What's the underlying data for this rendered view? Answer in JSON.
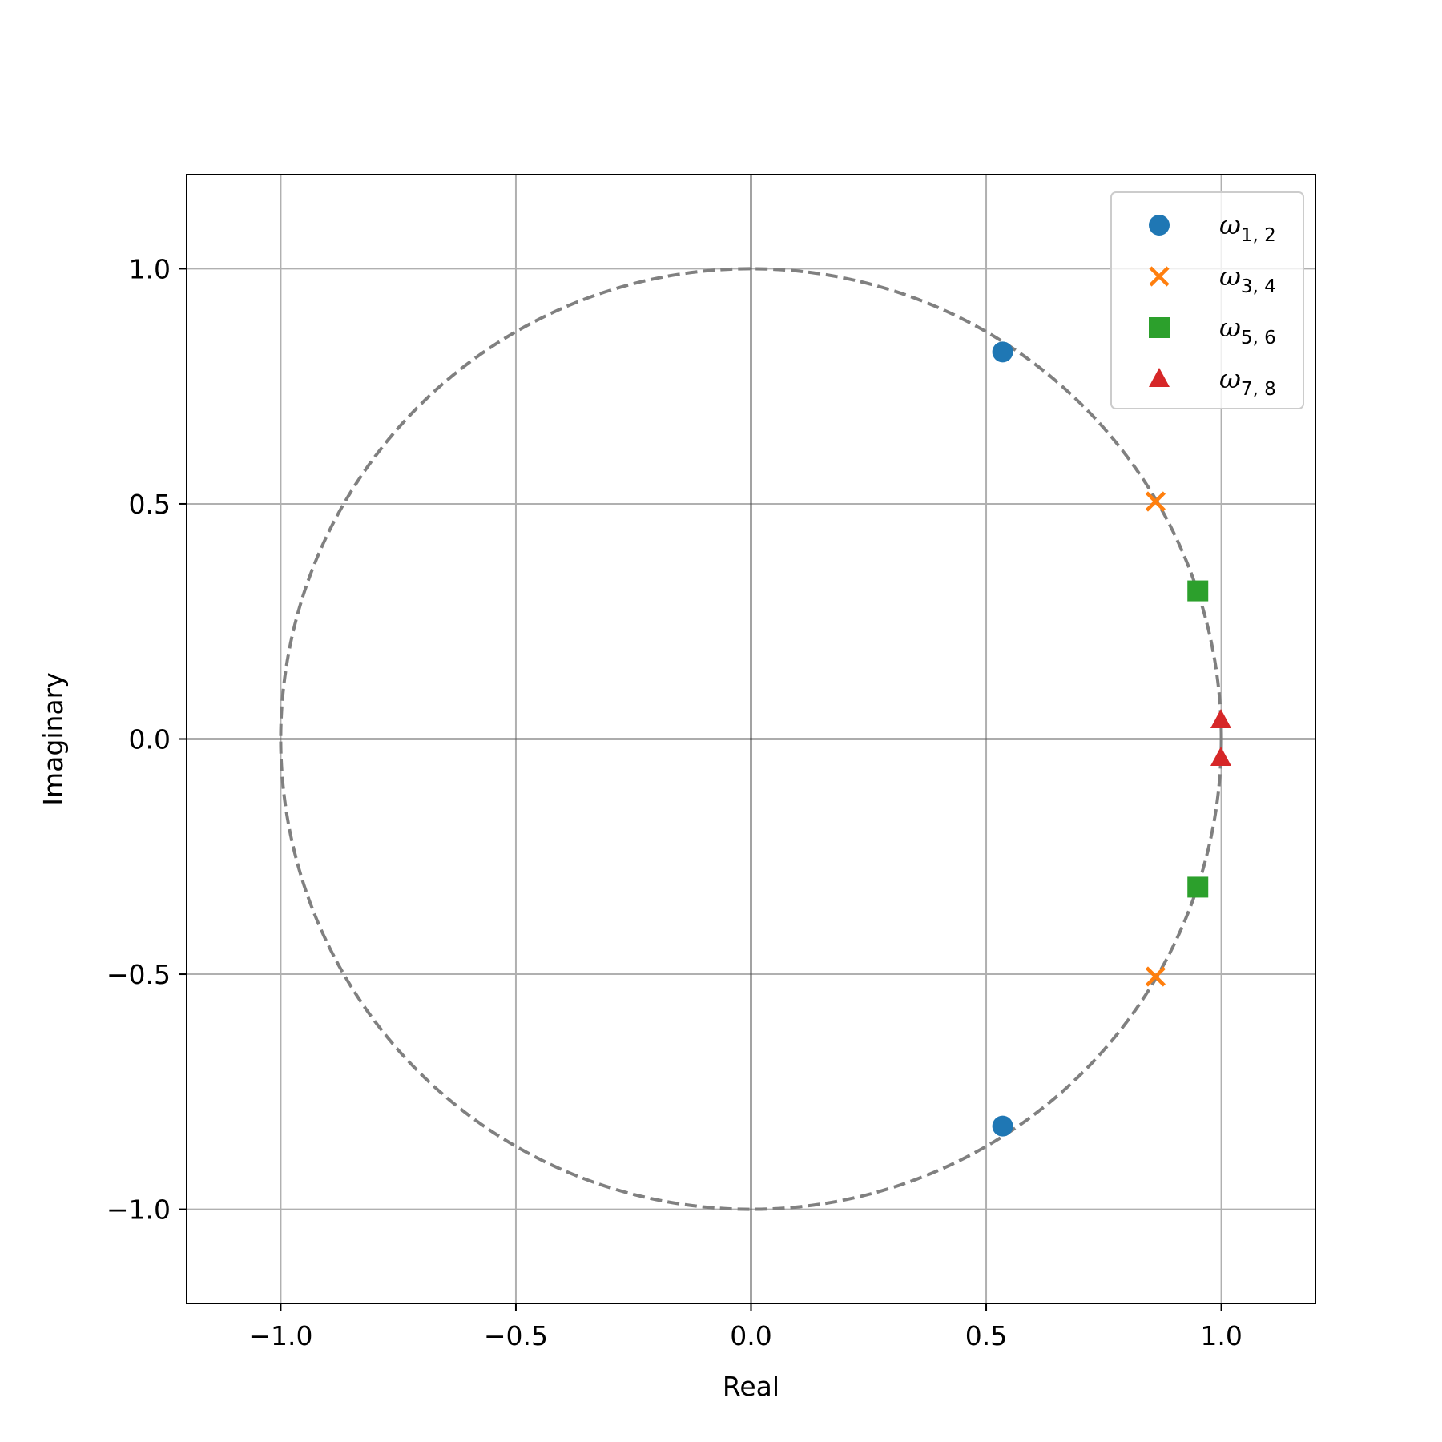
{
  "chart_data": {
    "type": "scatter",
    "title": "",
    "xlabel": "Real",
    "ylabel": "Imaginary",
    "xlim": [
      -1.2,
      1.2
    ],
    "ylim": [
      -1.2,
      1.2
    ],
    "xticks": [
      -1.0,
      -0.5,
      0.0,
      0.5,
      1.0
    ],
    "yticks": [
      -1.0,
      -0.5,
      0.0,
      0.5,
      1.0
    ],
    "xtick_labels": [
      "−1.0",
      "−0.5",
      "0.0",
      "0.5",
      "1.0"
    ],
    "ytick_labels": [
      "−1.0",
      "−0.5",
      "0.0",
      "0.5",
      "1.0"
    ],
    "grid": true,
    "legend_position": "top-right",
    "unit_circle": {
      "radius": 1.0,
      "style": "dashed",
      "color": "#808080"
    },
    "series": [
      {
        "name": "ω",
        "subscript": "1, 2",
        "marker": "circle",
        "color": "#1f77b4",
        "points": [
          [
            0.535,
            0.823
          ],
          [
            0.535,
            -0.823
          ]
        ]
      },
      {
        "name": "ω",
        "subscript": "3, 4",
        "marker": "x",
        "color": "#ff7f0e",
        "points": [
          [
            0.86,
            0.505
          ],
          [
            0.86,
            -0.505
          ]
        ]
      },
      {
        "name": "ω",
        "subscript": "5, 6",
        "marker": "square",
        "color": "#2ca02c",
        "points": [
          [
            0.95,
            0.315
          ],
          [
            0.95,
            -0.315
          ]
        ]
      },
      {
        "name": "ω",
        "subscript": "7, 8",
        "marker": "triangle",
        "color": "#d62728",
        "points": [
          [
            0.999,
            0.04
          ],
          [
            0.999,
            -0.04
          ]
        ]
      }
    ]
  }
}
